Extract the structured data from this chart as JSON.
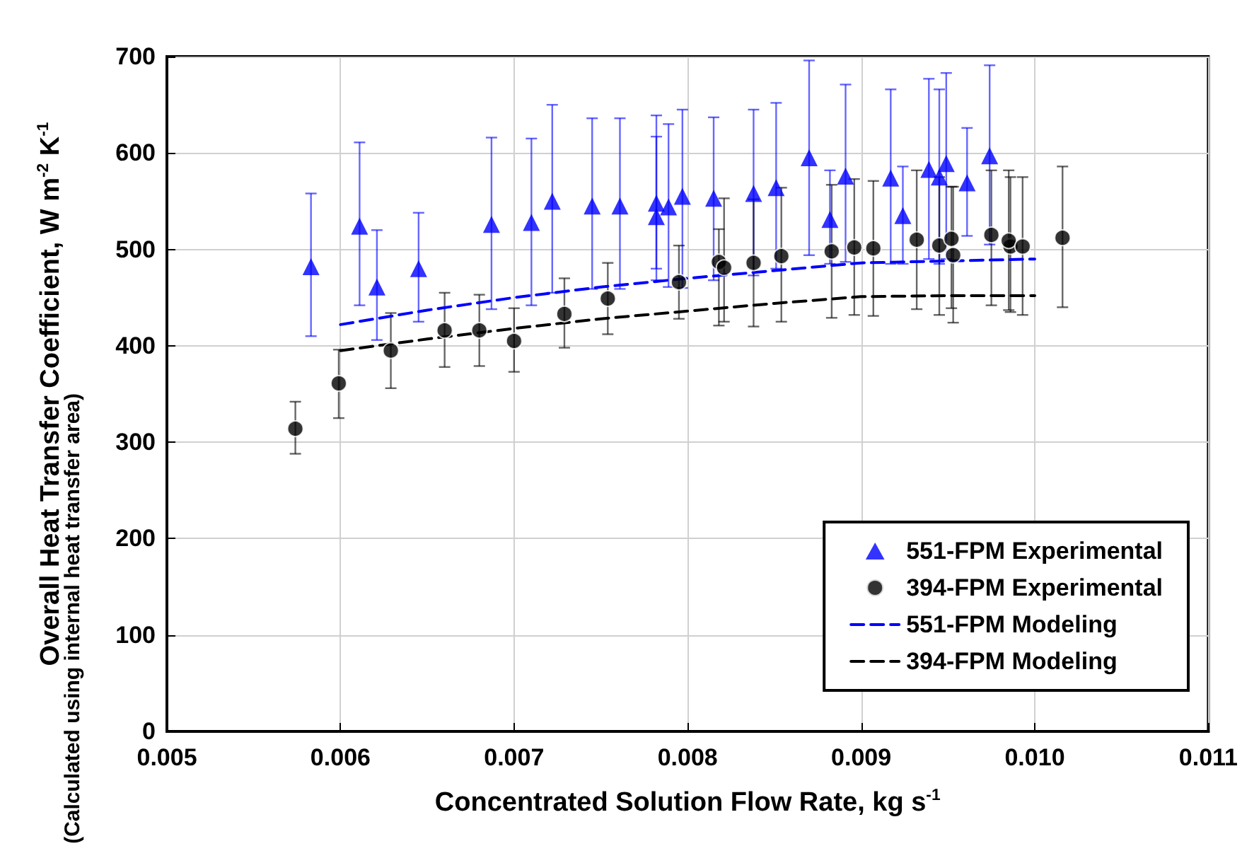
{
  "chart_data": {
    "type": "scatter",
    "xlabel": "Concentrated Solution Flow Rate, kg s$^{-1}$",
    "ylabel": "Overall Heat Transfer Coefficient, W m$^{-2}$ K$^{-1}$",
    "annotations": [
      "(Calculated using internal heat transfer area)"
    ],
    "xlim": [
      0.005,
      0.011
    ],
    "xticks": [
      {
        "value": 0.005,
        "label": "0.005"
      },
      {
        "value": 0.006,
        "label": "0.006"
      },
      {
        "value": 0.007,
        "label": "0.007"
      },
      {
        "value": 0.008,
        "label": "0.008"
      },
      {
        "value": 0.009,
        "label": "0.009"
      },
      {
        "value": 0.01,
        "label": "0.010"
      },
      {
        "value": 0.011,
        "label": "0.011"
      }
    ],
    "ylim": [
      0,
      700
    ],
    "yticks": [
      0,
      100,
      200,
      300,
      400,
      500,
      600,
      700
    ],
    "grid": true,
    "legend": "bottom right",
    "series": [
      {
        "name": "551-FPM Experimental",
        "marker": "triangle",
        "color": "#0000ff",
        "x": [
          0.00583,
          0.00611,
          0.00621,
          0.00645,
          0.00687,
          0.0071,
          0.00722,
          0.00745,
          0.00761,
          0.00782,
          0.00782,
          0.00789,
          0.00797,
          0.00815,
          0.00838,
          0.00851,
          0.0087,
          0.00882,
          0.00891,
          0.00917,
          0.00924,
          0.00939,
          0.00945,
          0.00949,
          0.00961,
          0.00974
        ],
        "values": [
          482,
          524,
          461,
          480,
          526,
          528,
          550,
          545,
          545,
          548,
          534,
          544,
          555,
          553,
          558,
          564,
          595,
          531,
          576,
          574,
          535,
          583,
          575,
          589,
          569,
          597
        ],
        "errors": [
          [
            410,
            558
          ],
          [
            442,
            611
          ],
          [
            406,
            520
          ],
          [
            425,
            538
          ],
          [
            438,
            616
          ],
          [
            442,
            615
          ],
          [
            455,
            650
          ],
          [
            459,
            636
          ],
          [
            459,
            636
          ],
          [
            468,
            639
          ],
          [
            480,
            617
          ],
          [
            461,
            630
          ],
          [
            460,
            645
          ],
          [
            468,
            637
          ],
          [
            473,
            645
          ],
          [
            480,
            652
          ],
          [
            494,
            696
          ],
          [
            485,
            582
          ],
          [
            487,
            671
          ],
          [
            485,
            666
          ],
          [
            485,
            586
          ],
          [
            490,
            677
          ],
          [
            485,
            666
          ],
          [
            490,
            683
          ],
          [
            514,
            626
          ],
          [
            505,
            691
          ]
        ]
      },
      {
        "name": "394-FPM Experimental",
        "marker": "circle",
        "color": "#000000",
        "x": [
          0.00574,
          0.00599,
          0.00629,
          0.0066,
          0.0068,
          0.007,
          0.00729,
          0.00754,
          0.00795,
          0.00818,
          0.00821,
          0.00838,
          0.00854,
          0.00883,
          0.00896,
          0.00907,
          0.00932,
          0.00945,
          0.00952,
          0.00953,
          0.00975,
          0.00986,
          0.00985,
          0.00993,
          0.01016
        ],
        "values": [
          314,
          361,
          395,
          416,
          416,
          405,
          433,
          449,
          466,
          487,
          481,
          486,
          493,
          498,
          502,
          501,
          510,
          504,
          511,
          494,
          515,
          503,
          509,
          503,
          512
        ],
        "errors": [
          [
            288,
            342
          ],
          [
            325,
            396
          ],
          [
            356,
            434
          ],
          [
            378,
            455
          ],
          [
            379,
            453
          ],
          [
            373,
            439
          ],
          [
            398,
            470
          ],
          [
            412,
            486
          ],
          [
            428,
            504
          ],
          [
            421,
            521
          ],
          [
            425,
            553
          ],
          [
            420,
            552
          ],
          [
            425,
            564
          ],
          [
            429,
            567
          ],
          [
            432,
            573
          ],
          [
            431,
            571
          ],
          [
            438,
            582
          ],
          [
            432,
            575
          ],
          [
            439,
            565
          ],
          [
            424,
            565
          ],
          [
            442,
            582
          ],
          [
            435,
            575
          ],
          [
            437,
            582
          ],
          [
            432,
            575
          ],
          [
            440,
            586
          ]
        ]
      },
      {
        "name": "551-FPM Modeling",
        "type": "line",
        "marker": "none",
        "line_style": "dashed",
        "color": "#0000ff",
        "x": [
          0.006,
          0.0065,
          0.007,
          0.0075,
          0.008,
          0.0085,
          0.009,
          0.0095,
          0.01
        ],
        "values": [
          422,
          437,
          450,
          461,
          470,
          478,
          486,
          488,
          490
        ]
      },
      {
        "name": "394-FPM Modeling",
        "type": "line",
        "marker": "none",
        "line_style": "dashed",
        "color": "#000000",
        "x": [
          0.006,
          0.0065,
          0.007,
          0.0075,
          0.008,
          0.0085,
          0.009,
          0.0095,
          0.01
        ],
        "values": [
          395,
          407,
          418,
          428,
          436,
          444,
          451,
          452,
          452
        ]
      }
    ]
  }
}
